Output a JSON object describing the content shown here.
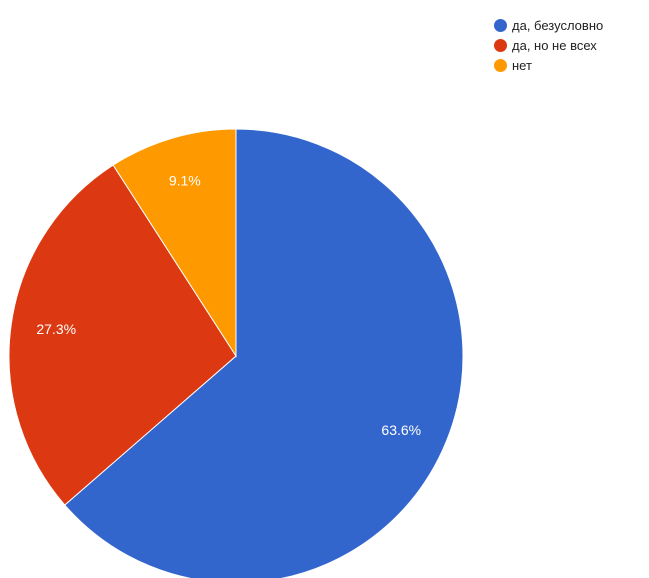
{
  "chart_data": {
    "type": "pie",
    "title": "",
    "legend_position": "top-right",
    "slices": [
      {
        "label": "да, безусловно",
        "value": 63.6,
        "display": "63.6%",
        "color": "#3366cc"
      },
      {
        "label": "да, но не всех",
        "value": 27.3,
        "display": "27.3%",
        "color": "#dc3912"
      },
      {
        "label": "нет",
        "value": 9.1,
        "display": "9.1%",
        "color": "#ff9900"
      }
    ]
  }
}
